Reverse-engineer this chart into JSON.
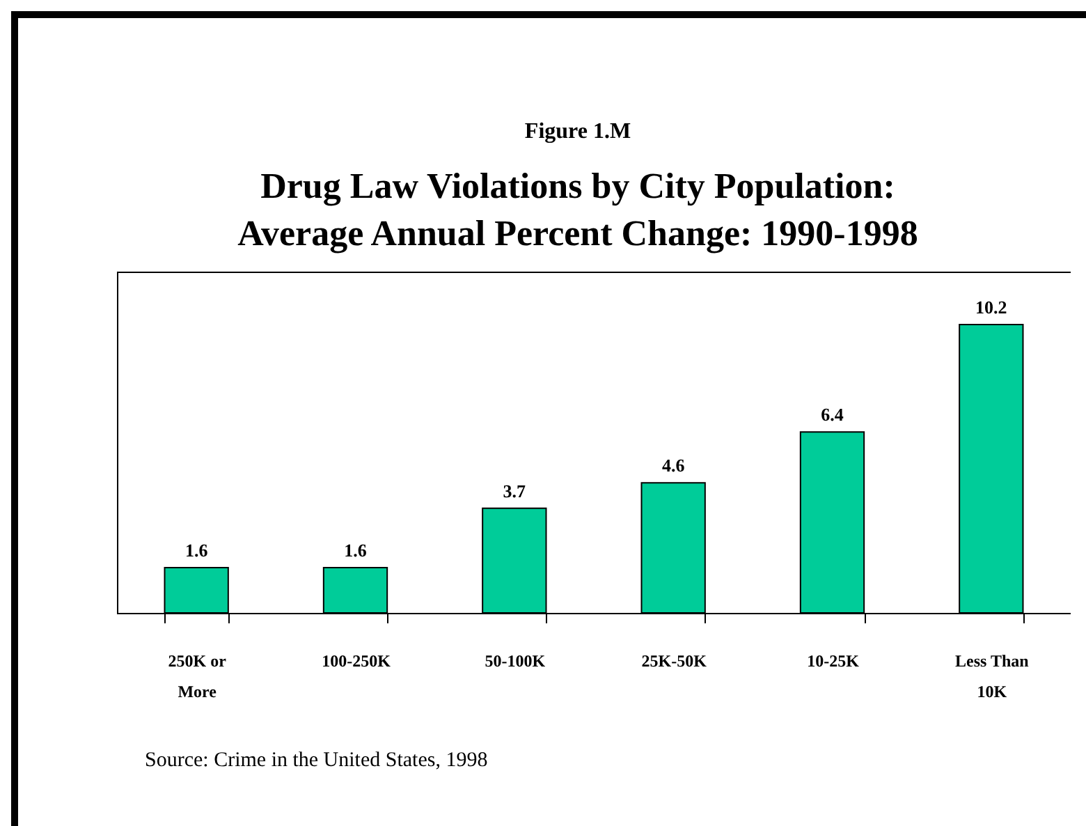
{
  "chart_data": {
    "type": "bar",
    "title": "Drug Law Violations by City Population: Average Annual Percent Change: 1990-1998",
    "subtitle": "Figure 1.M",
    "categories": [
      "250K or More",
      "100-250K",
      "50-100K",
      "25K-50K",
      "10-25K",
      "Less Than 10K"
    ],
    "values": [
      1.6,
      1.6,
      3.7,
      4.6,
      6.4,
      10.2
    ],
    "color": "#00cc99",
    "data_labels": true,
    "annotations": [
      "Source:  Crime in the United States, 1998"
    ]
  }
}
